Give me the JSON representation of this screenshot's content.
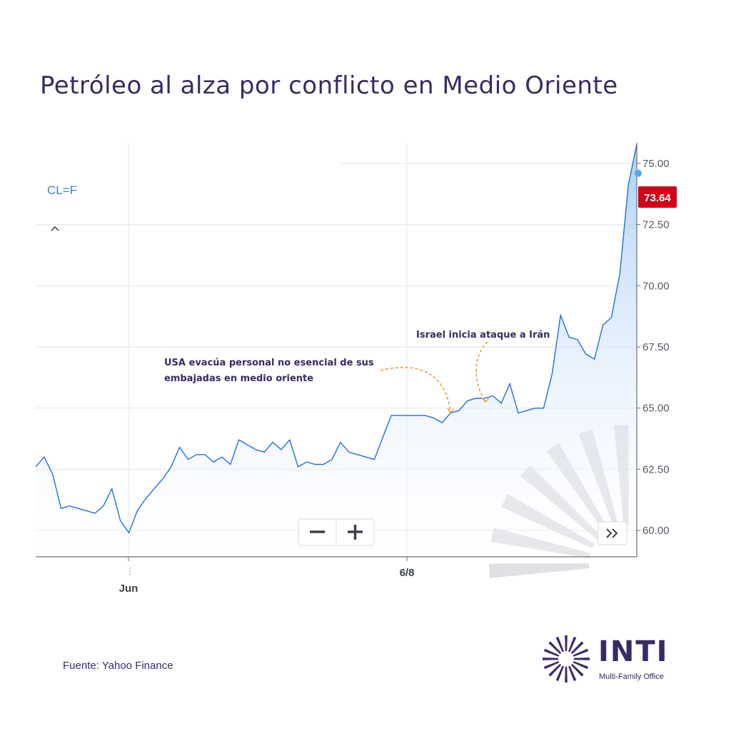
{
  "title": "Petróleo al alza por conflicto en Medio Oriente",
  "source": "Fuente: Yahoo Finance",
  "logo": {
    "name": "INTI",
    "tagline": "Multi-Family Office",
    "icon": "sun-logo-icon"
  },
  "controls": {
    "symbol": "CL=F",
    "collapse_icon": "chevron-up-icon",
    "zoom_out_icon": "minus-icon",
    "zoom_in_icon": "plus-icon",
    "expand_icon": "double-chevron-right-icon"
  },
  "colors": {
    "line": "#1f6fe0",
    "area_top": "#a9cdf7",
    "area_bottom": "#ffffff",
    "price_tag": "#d0021b",
    "title": "#3a2a63",
    "annotation_arrow": "#f0a030"
  },
  "chart_data": {
    "type": "area",
    "title": "",
    "xlabel": "",
    "ylabel": "",
    "ylim": [
      59,
      76.2
    ],
    "yticks": [
      "60.00",
      "62.50",
      "65.00",
      "67.50",
      "70.00",
      "72.50",
      "75.00"
    ],
    "xticks": [
      "Jun",
      "6/8"
    ],
    "grid": true,
    "last_price": "73.64",
    "series": [
      {
        "values": [
          62.6,
          63.0,
          62.3,
          60.9,
          61.0,
          60.9,
          60.8,
          60.7,
          61.0,
          61.7,
          60.4,
          59.9,
          60.8,
          61.3,
          61.7,
          62.1,
          62.6,
          63.4,
          62.9,
          63.1,
          63.1,
          62.8,
          63.0,
          62.7,
          63.7,
          63.5,
          63.3,
          63.2,
          63.6,
          63.3,
          63.7,
          62.6,
          62.8,
          62.7,
          62.7,
          62.9,
          63.6,
          63.2,
          63.1,
          63.0,
          62.9,
          63.8,
          64.7,
          64.7,
          64.7,
          64.7,
          64.7,
          64.6,
          64.4,
          64.8,
          64.9,
          65.3,
          65.4,
          65.4,
          65.5,
          65.2,
          66.0,
          64.8,
          64.9,
          65.0,
          65.0,
          66.4,
          68.8,
          67.9,
          67.8,
          67.2,
          67.0,
          68.4,
          68.7,
          70.5,
          74.1,
          75.8
        ],
        "start_label": "Jun",
        "mid_label": "6/8"
      }
    ],
    "annotations": [
      {
        "text_lines": [
          "USA evacúa personal no esencial de sus",
          "embajadas en medio oriente"
        ],
        "point_index": 48
      },
      {
        "text_lines": [
          "Israel inicia ataque a Irán"
        ],
        "point_index": 52
      }
    ]
  }
}
